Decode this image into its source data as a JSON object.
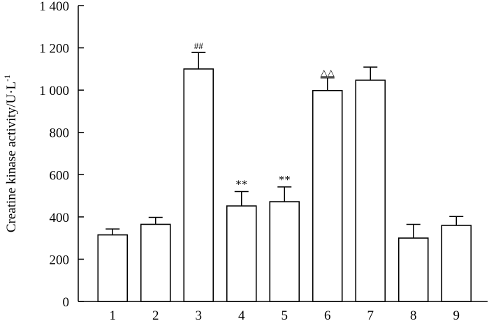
{
  "chart_data": {
    "type": "bar",
    "title": "",
    "xlabel": "",
    "ylabel": "Creatine kinase activity/U·L",
    "ylabel_superscript": "-1",
    "ylim": [
      0,
      1400
    ],
    "yticks": [
      0,
      200,
      400,
      600,
      800,
      1000,
      1200,
      1400
    ],
    "ytick_labels": [
      "0",
      "200",
      "400",
      "600",
      "800",
      "1 000",
      "1 200",
      "1 400"
    ],
    "categories": [
      "1",
      "2",
      "3",
      "4",
      "5",
      "6",
      "7",
      "8",
      "9"
    ],
    "values": [
      315,
      365,
      1100,
      452,
      472,
      998,
      1047,
      300,
      360
    ],
    "error": [
      28,
      33,
      78,
      68,
      70,
      60,
      62,
      65,
      42
    ],
    "annotations": [
      "",
      "",
      "##",
      "**",
      "**",
      "△△",
      "",
      "",
      ""
    ],
    "grid": false,
    "colors": {
      "bar_fill": "#ffffff",
      "stroke": "#000000"
    }
  }
}
